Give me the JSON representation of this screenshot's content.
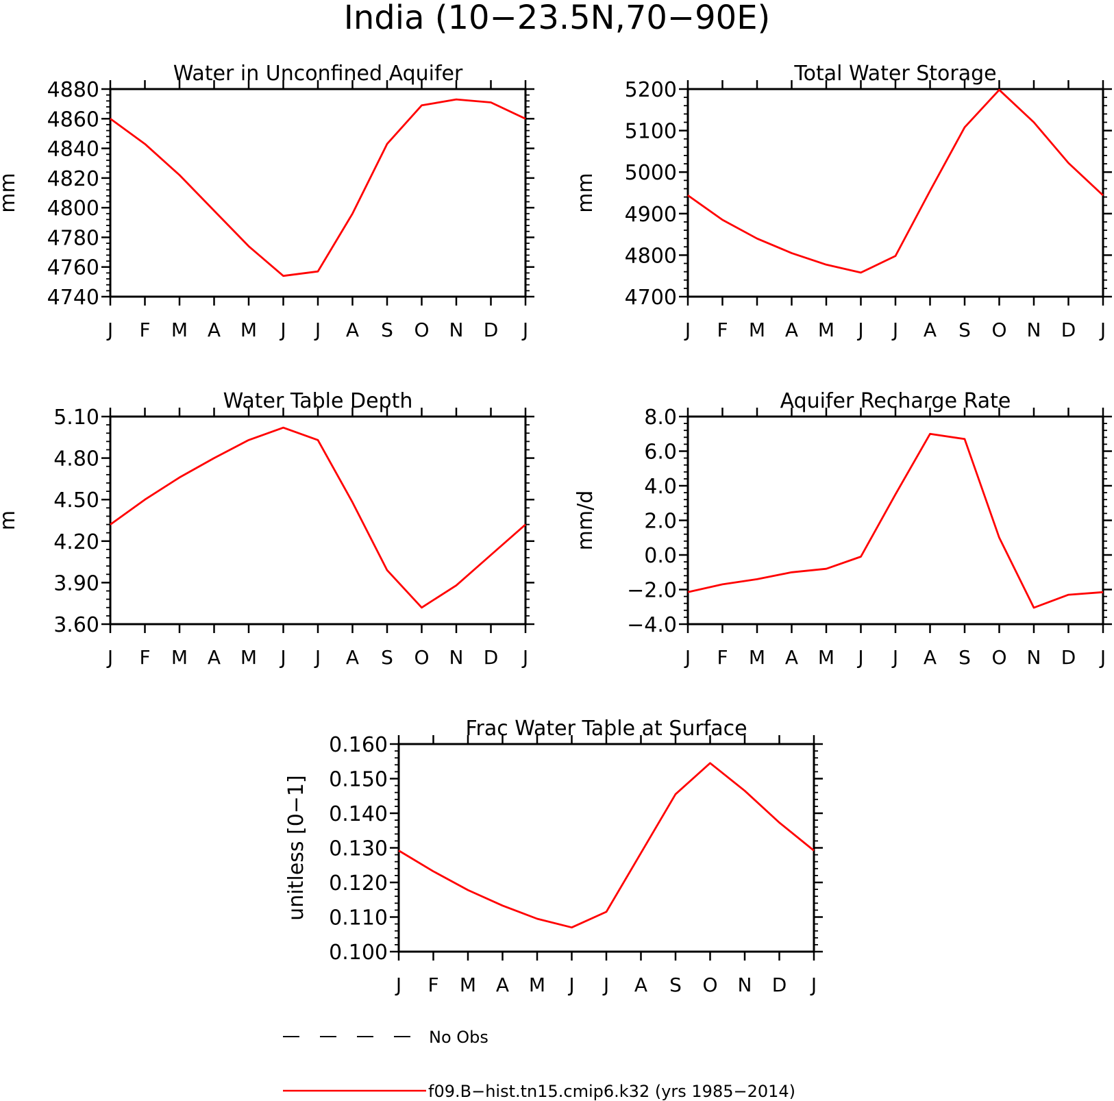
{
  "figure": {
    "title": "India (10−23.5N,70−90E)",
    "legend": {
      "obs_label": "No Obs",
      "model_label": "f09.B−hist.tn15.cmip6.k32 (yrs 1985−2014)",
      "model_color": "#ff0000",
      "obs_color": "#000000"
    }
  },
  "chart_data": [
    {
      "type": "line",
      "title": "Water in Unconfined Aquifer",
      "ylabel": "mm",
      "categories": [
        "J",
        "F",
        "M",
        "A",
        "M",
        "J",
        "J",
        "A",
        "S",
        "O",
        "N",
        "D",
        "J"
      ],
      "ylim": [
        4740,
        4880
      ],
      "yticks": [
        4740,
        4760,
        4780,
        4800,
        4820,
        4840,
        4860,
        4880
      ],
      "ytick_labels": [
        "4740",
        "4760",
        "4780",
        "4800",
        "4820",
        "4840",
        "4860",
        "4880"
      ],
      "series": [
        {
          "values": [
            4860,
            4843,
            4822,
            4798,
            4774,
            4754,
            4757,
            4796,
            4843,
            4869,
            4873,
            4871,
            4860
          ]
        }
      ]
    },
    {
      "type": "line",
      "title": "Total Water Storage",
      "ylabel": "mm",
      "categories": [
        "J",
        "F",
        "M",
        "A",
        "M",
        "J",
        "J",
        "A",
        "S",
        "O",
        "N",
        "D",
        "J"
      ],
      "ylim": [
        4700,
        5200
      ],
      "yticks": [
        4700,
        4800,
        4900,
        5000,
        5100,
        5200
      ],
      "ytick_labels": [
        "4700",
        "4800",
        "4900",
        "5000",
        "5100",
        "5200"
      ],
      "series": [
        {
          "values": [
            4944,
            4885,
            4840,
            4805,
            4777,
            4758,
            4798,
            4955,
            5108,
            5198,
            5120,
            5022,
            4944
          ]
        }
      ]
    },
    {
      "type": "line",
      "title": "Water Table Depth",
      "ylabel": "m",
      "categories": [
        "J",
        "F",
        "M",
        "A",
        "M",
        "J",
        "J",
        "A",
        "S",
        "O",
        "N",
        "D",
        "J"
      ],
      "ylim": [
        3.6,
        5.1
      ],
      "yticks": [
        3.6,
        3.9,
        4.2,
        4.5,
        4.8,
        5.1
      ],
      "ytick_labels": [
        "3.60",
        "3.90",
        "4.20",
        "4.50",
        "4.80",
        "5.10"
      ],
      "series": [
        {
          "values": [
            4.32,
            4.5,
            4.66,
            4.8,
            4.93,
            5.02,
            4.93,
            4.48,
            3.99,
            3.72,
            3.88,
            4.1,
            4.32
          ]
        }
      ]
    },
    {
      "type": "line",
      "title": "Aquifer Recharge Rate",
      "ylabel": "mm/d",
      "categories": [
        "J",
        "F",
        "M",
        "A",
        "M",
        "J",
        "J",
        "A",
        "S",
        "O",
        "N",
        "D",
        "J"
      ],
      "ylim": [
        -4,
        8
      ],
      "yticks": [
        -4,
        -2,
        0,
        2,
        4,
        6,
        8
      ],
      "ytick_labels": [
        "−4.0",
        "−2.0",
        "0.0",
        "2.0",
        "4.0",
        "6.0",
        "8.0"
      ],
      "series": [
        {
          "values": [
            -2.15,
            -1.7,
            -1.4,
            -1.0,
            -0.8,
            -0.1,
            3.5,
            7.0,
            6.7,
            1.0,
            -3.05,
            -2.3,
            -2.15
          ]
        }
      ]
    },
    {
      "type": "line",
      "title": "Frac Water Table at Surface",
      "ylabel": "unitless [0−1]",
      "categories": [
        "J",
        "F",
        "M",
        "A",
        "M",
        "J",
        "J",
        "A",
        "S",
        "O",
        "N",
        "D",
        "J"
      ],
      "ylim": [
        0.1,
        0.16
      ],
      "yticks": [
        0.1,
        0.11,
        0.12,
        0.13,
        0.14,
        0.15,
        0.16
      ],
      "ytick_labels": [
        "0.100",
        "0.110",
        "0.120",
        "0.130",
        "0.140",
        "0.150",
        "0.160"
      ],
      "series": [
        {
          "values": [
            0.1292,
            0.1232,
            0.1178,
            0.1133,
            0.1095,
            0.107,
            0.1115,
            0.1285,
            0.1455,
            0.1545,
            0.1465,
            0.1373,
            0.1292
          ]
        }
      ]
    }
  ]
}
